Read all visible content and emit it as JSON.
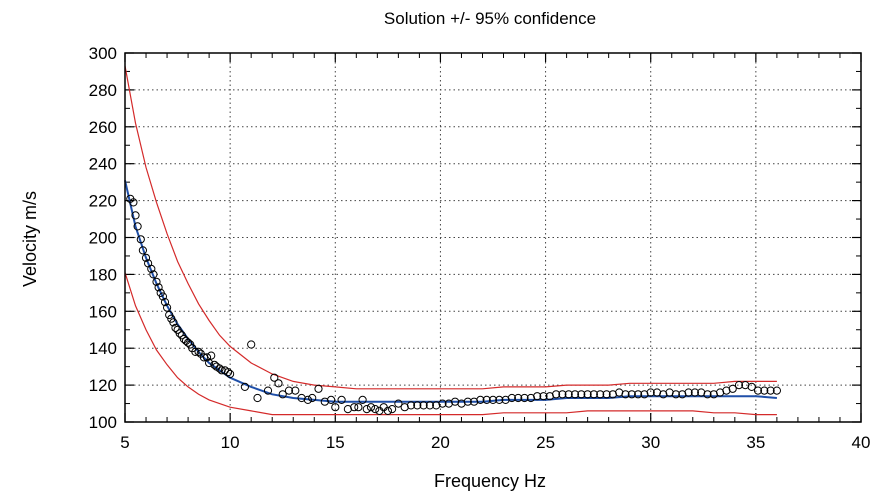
{
  "chart_data": {
    "type": "scatter",
    "title": "Solution +/- 95% confidence",
    "xlabel": "Frequency Hz",
    "ylabel": "Velocity m/s",
    "xlim": [
      5,
      40
    ],
    "ylim": [
      100,
      300
    ],
    "x_ticks": [
      "5",
      "10",
      "15",
      "20",
      "25",
      "30",
      "35",
      "40"
    ],
    "y_ticks": [
      "100",
      "120",
      "140",
      "160",
      "180",
      "200",
      "220",
      "240",
      "260",
      "280",
      "300"
    ],
    "grid": true,
    "colors": {
      "observed": "#000000",
      "fit": "#1f4fa8",
      "confidence": "#d42a2a"
    },
    "observed": {
      "x": [
        5.25,
        5.4,
        5.5,
        5.6,
        5.75,
        5.85,
        6.0,
        6.1,
        6.25,
        6.35,
        6.5,
        6.6,
        6.7,
        6.8,
        6.9,
        7.0,
        7.1,
        7.2,
        7.3,
        7.4,
        7.5,
        7.6,
        7.7,
        7.8,
        7.9,
        8.0,
        8.1,
        8.2,
        8.35,
        8.5,
        8.6,
        8.75,
        8.9,
        9.0,
        9.1,
        9.25,
        9.35,
        9.5,
        9.6,
        9.75,
        9.9,
        10.0,
        10.7,
        11.0,
        11.3,
        11.8,
        12.1,
        12.3,
        12.5,
        12.8,
        13.1,
        13.4,
        13.7,
        13.9,
        14.2,
        14.5,
        14.8,
        15.0,
        15.3,
        15.6,
        15.9,
        16.1,
        16.3,
        16.5,
        16.7,
        16.9,
        17.1,
        17.3,
        17.5,
        17.7,
        18.0,
        18.3,
        18.6,
        18.9,
        19.2,
        19.5,
        19.8,
        20.1,
        20.4,
        20.7,
        21.0,
        21.3,
        21.6,
        21.9,
        22.2,
        22.5,
        22.8,
        23.1,
        23.4,
        23.7,
        24.0,
        24.3,
        24.6,
        24.9,
        25.2,
        25.5,
        25.8,
        26.1,
        26.4,
        26.7,
        27.0,
        27.3,
        27.6,
        27.9,
        28.2,
        28.5,
        28.8,
        29.1,
        29.4,
        29.7,
        30.0,
        30.3,
        30.6,
        30.9,
        31.2,
        31.5,
        31.8,
        32.1,
        32.4,
        32.7,
        33.0,
        33.3,
        33.6,
        33.9,
        34.2,
        34.5,
        34.8,
        35.1,
        35.4,
        35.7,
        36.0
      ],
      "y": [
        221,
        219,
        212,
        206,
        199,
        193,
        189,
        186,
        183,
        180,
        176,
        173,
        170,
        168,
        165,
        162,
        158,
        156,
        154,
        151,
        150,
        148,
        147,
        145,
        144,
        143,
        142,
        140,
        138,
        138,
        137,
        135,
        135,
        132,
        136,
        131,
        130,
        129,
        128,
        128,
        127,
        126,
        119,
        142,
        113,
        117,
        124,
        121,
        115,
        117,
        117,
        113,
        112,
        113,
        118,
        111,
        112,
        108,
        112,
        107,
        108,
        108,
        112,
        107,
        108,
        107,
        106,
        108,
        106,
        107,
        110,
        108,
        109,
        109,
        109,
        109,
        109,
        110,
        110,
        111,
        110,
        111,
        111,
        112,
        112,
        112,
        112,
        112,
        113,
        113,
        113,
        113,
        114,
        114,
        114,
        115,
        115,
        115,
        115,
        115,
        115,
        115,
        115,
        115,
        115,
        116,
        115,
        115,
        115,
        115,
        116,
        116,
        115,
        116,
        115,
        115,
        116,
        116,
        116,
        115,
        115,
        116,
        117,
        118,
        120,
        120,
        119,
        117,
        117,
        117,
        117
      ]
    },
    "fit": {
      "x": [
        5.0,
        5.5,
        6,
        6.5,
        7,
        7.5,
        8,
        8.5,
        9,
        9.5,
        10,
        11,
        12,
        13,
        14,
        15,
        16,
        17,
        18,
        19,
        20,
        21,
        22,
        23,
        24,
        25,
        26,
        27,
        28,
        29,
        30,
        31,
        32,
        33,
        34,
        35,
        36
      ],
      "y": [
        231,
        206,
        189,
        175,
        163,
        153,
        145,
        138,
        132,
        128,
        124,
        119,
        115,
        113,
        112,
        111,
        111,
        111,
        111,
        111,
        111,
        111,
        111,
        112,
        112,
        112,
        113,
        113,
        113,
        114,
        114,
        114,
        114,
        114,
        114,
        114,
        113
      ]
    },
    "upper": {
      "x": [
        5.0,
        5.5,
        6,
        6.5,
        7,
        7.5,
        8,
        8.5,
        9,
        9.5,
        10,
        11,
        12,
        13,
        14,
        15,
        16,
        17,
        18,
        19,
        20,
        21,
        22,
        23,
        24,
        25,
        26,
        27,
        28,
        29,
        30,
        31,
        32,
        33,
        34,
        35,
        36
      ],
      "y": [
        293,
        262,
        238,
        219,
        202,
        187,
        175,
        164,
        155,
        147,
        141,
        132,
        126,
        122,
        120,
        119,
        118,
        118,
        118,
        118,
        118,
        118,
        118,
        119,
        119,
        119,
        120,
        120,
        120,
        121,
        121,
        121,
        121,
        121,
        122,
        122,
        122
      ]
    },
    "lower": {
      "x": [
        5.0,
        5.5,
        6,
        6.5,
        7,
        7.5,
        8,
        8.5,
        9,
        9.5,
        10,
        11,
        12,
        13,
        14,
        15,
        16,
        17,
        18,
        19,
        20,
        21,
        22,
        23,
        24,
        25,
        26,
        27,
        28,
        29,
        30,
        31,
        32,
        33,
        34,
        35,
        36
      ],
      "y": [
        181,
        163,
        150,
        139,
        131,
        124,
        119,
        115,
        112,
        110,
        108,
        106,
        104,
        104,
        104,
        104,
        104,
        104,
        104,
        104,
        104,
        104,
        104,
        105,
        105,
        105,
        105,
        106,
        106,
        106,
        106,
        106,
        106,
        105,
        105,
        104,
        104
      ]
    }
  }
}
